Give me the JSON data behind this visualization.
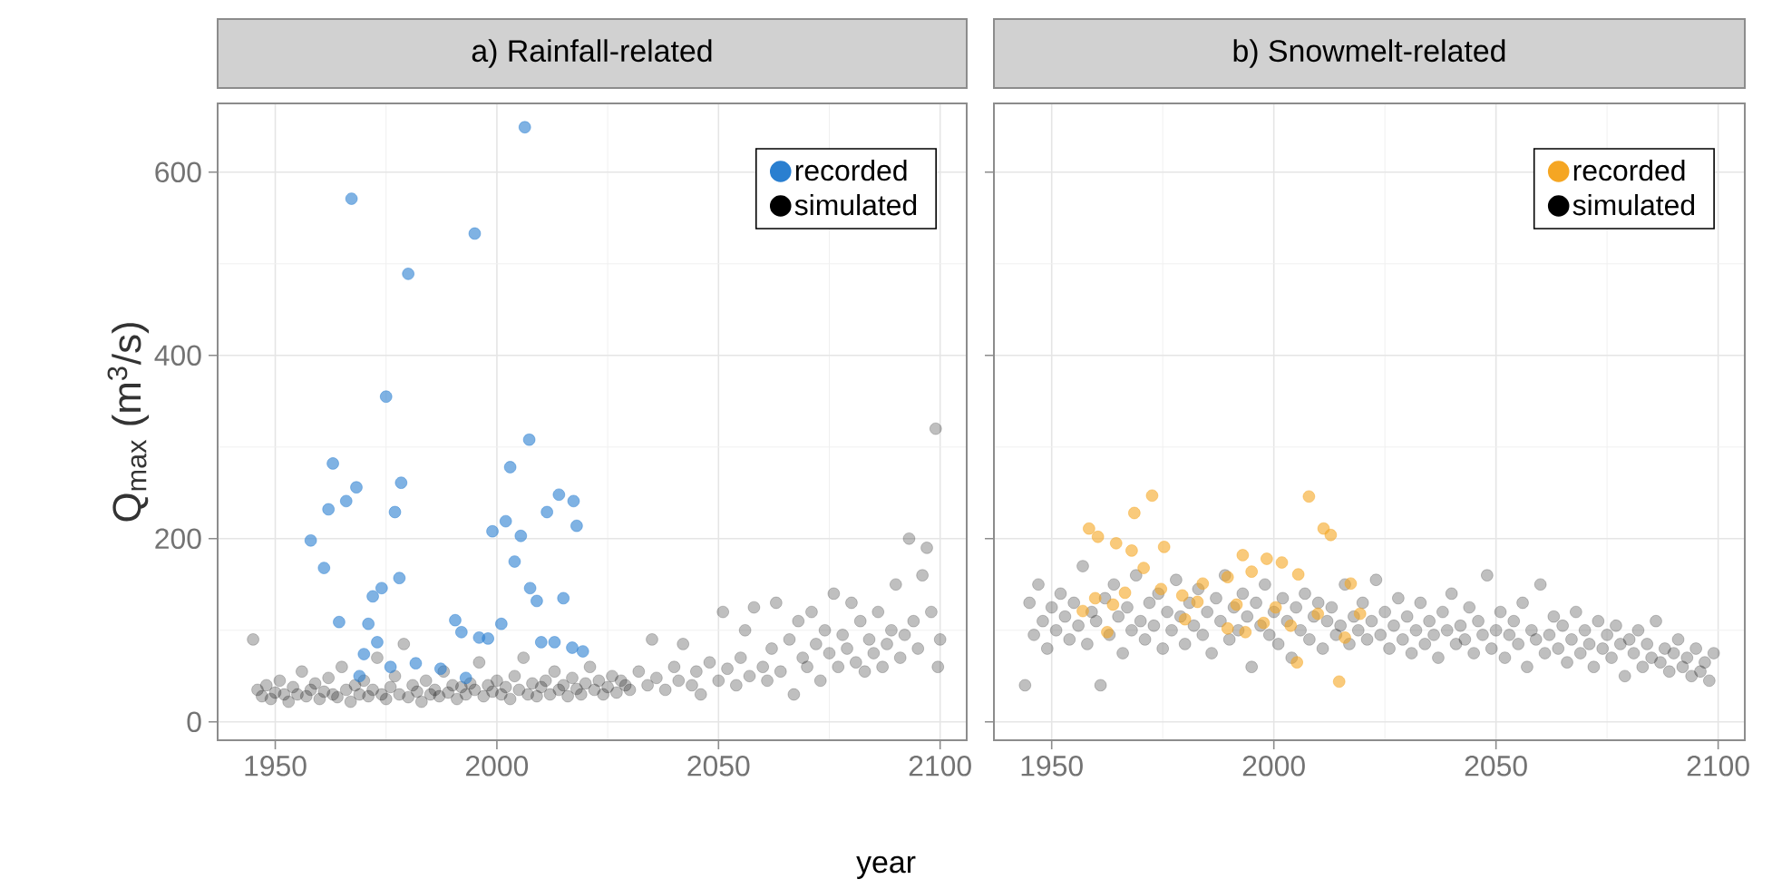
{
  "chart_data": [
    {
      "type": "scatter",
      "title": "a)  Rainfall-related",
      "xlabel": "year",
      "ylabel": "Q$_{max}$ (m$^{3}$/s)",
      "xlim": [
        1937,
        2106
      ],
      "ylim": [
        -20,
        675
      ],
      "xticks": [
        1950,
        2000,
        2050,
        2100
      ],
      "yticks": [
        0,
        200,
        400,
        600
      ],
      "grid": true,
      "legend": "top right",
      "marker": "circle",
      "series": [
        {
          "name": "recorded",
          "color": "#2a7fd0",
          "x": [
            1967.2,
            1980,
            1995,
            2006.3,
            1975,
            2007.3,
            1963,
            2003,
            1968.3,
            1966,
            1978.4,
            1962,
            1977,
            2014,
            2017.3,
            2018,
            2011.3,
            2002,
            1999,
            2005.4,
            1958,
            1961,
            2004,
            1978,
            1974,
            1972,
            2007.5,
            2009,
            2015,
            1964.4,
            1971,
            1990.6,
            1992,
            1996,
            1998,
            2001,
            1973,
            1970,
            2010,
            2013,
            2017,
            2019.4,
            1969,
            1976,
            1981.7,
            1987.3,
            1993
          ],
          "values": [
            571,
            489,
            533,
            649,
            355,
            308,
            282,
            278,
            256,
            241,
            261,
            232,
            229,
            248,
            241,
            214,
            229,
            219,
            208,
            203,
            198,
            168,
            175,
            157,
            146,
            137,
            146,
            132,
            135,
            109,
            107,
            111,
            98,
            92,
            91,
            107,
            87,
            74,
            87,
            87,
            81,
            77,
            50,
            60,
            64,
            58,
            48
          ]
        },
        {
          "name": "simulated",
          "color": "#000000",
          "x": [
            1945,
            1946,
            1947,
            1948,
            1949,
            1950,
            1951,
            1952,
            1953,
            1954,
            1955,
            1956,
            1957,
            1958,
            1959,
            1960,
            1961,
            1962,
            1963,
            1964,
            1965,
            1966,
            1967,
            1968,
            1969,
            1970,
            1971,
            1972,
            1973,
            1974,
            1975,
            1976,
            1977,
            1978,
            1979,
            1980,
            1981,
            1982,
            1983,
            1984,
            1985,
            1986,
            1987,
            1988,
            1989,
            1990,
            1991,
            1992,
            1993,
            1994,
            1995,
            1996,
            1997,
            1998,
            1999,
            2000,
            2001,
            2002,
            2003,
            2004,
            2005,
            2006,
            2007,
            2008,
            2009,
            2010,
            2011,
            2012,
            2013,
            2014,
            2015,
            2016,
            2017,
            2018,
            2019,
            2020,
            2021,
            2022,
            2023,
            2024,
            2025,
            2026,
            2027,
            2028,
            2029,
            2030,
            2032,
            2034,
            2035,
            2036,
            2038,
            2040,
            2041,
            2042,
            2044,
            2045,
            2046,
            2048,
            2050,
            2051,
            2052,
            2054,
            2055,
            2056,
            2057,
            2058,
            2060,
            2061,
            2062,
            2063,
            2064,
            2066,
            2067,
            2068,
            2069,
            2070,
            2071,
            2072,
            2073,
            2074,
            2075,
            2076,
            2077,
            2078,
            2079,
            2080,
            2081,
            2082,
            2083,
            2084,
            2085,
            2086,
            2087,
            2088,
            2089,
            2090,
            2091,
            2092,
            2093,
            2094,
            2095,
            2096,
            2097,
            2098,
            2099,
            2099.5,
            2100
          ],
          "values": [
            90,
            35,
            28,
            40,
            25,
            32,
            45,
            30,
            22,
            38,
            30,
            55,
            28,
            35,
            42,
            25,
            33,
            48,
            30,
            27,
            60,
            35,
            22,
            40,
            30,
            45,
            28,
            35,
            70,
            30,
            25,
            38,
            50,
            30,
            85,
            27,
            40,
            33,
            22,
            45,
            30,
            35,
            28,
            55,
            32,
            40,
            25,
            38,
            30,
            42,
            35,
            65,
            28,
            40,
            33,
            45,
            30,
            38,
            25,
            50,
            35,
            70,
            30,
            42,
            28,
            38,
            45,
            30,
            55,
            35,
            40,
            28,
            48,
            36,
            30,
            42,
            60,
            35,
            45,
            30,
            38,
            50,
            32,
            45,
            40,
            35,
            55,
            40,
            90,
            48,
            35,
            60,
            45,
            85,
            40,
            55,
            30,
            65,
            45,
            120,
            58,
            40,
            70,
            100,
            50,
            125,
            60,
            45,
            80,
            130,
            55,
            90,
            30,
            110,
            70,
            60,
            120,
            85,
            45,
            100,
            75,
            140,
            60,
            95,
            80,
            130,
            65,
            110,
            55,
            90,
            75,
            120,
            60,
            85,
            100,
            150,
            70,
            95,
            200,
            110,
            80,
            160,
            190,
            120,
            320,
            60,
            90
          ]
        }
      ]
    },
    {
      "type": "scatter",
      "title": "b)  Snowmelt-related",
      "xlim": [
        1937,
        2106
      ],
      "ylim": [
        -20,
        675
      ],
      "xticks": [
        1950,
        2000,
        2050,
        2100
      ],
      "yticks": [
        0,
        200,
        400,
        600
      ],
      "tick_labels": "x",
      "grid": true,
      "legend": "top right",
      "marker": "circle",
      "series": [
        {
          "name": "recorded",
          "color": "#f5a623",
          "x": [
            1972.6,
            2007.9,
            1968.6,
            1958.4,
            1960.4,
            2011.2,
            2012.8,
            1964.5,
            1975.3,
            1968,
            1970.7,
            1993,
            1998.4,
            2001.8,
            1995,
            2005.5,
            1989.6,
            1984,
            2017.3,
            1974.6,
            1966.5,
            1979.4,
            1982.8,
            1959.8,
            1957,
            1963.8,
            1991.6,
            2000.4,
            2009.9,
            2019.4,
            1980,
            1989.6,
            1997.7,
            2003.8,
            1962.5,
            1993.6,
            2016,
            2005.2,
            2014.7
          ],
          "values": [
            247,
            246,
            228,
            211,
            202,
            211,
            204,
            195,
            191,
            187,
            168,
            182,
            178,
            174,
            164,
            161,
            158,
            151,
            151,
            145,
            141,
            138,
            131,
            135,
            121,
            128,
            128,
            125,
            118,
            118,
            112,
            102,
            108,
            105,
            98,
            98,
            92,
            65,
            44
          ]
        },
        {
          "name": "simulated",
          "color": "#000000",
          "x": [
            1944,
            1945,
            1946,
            1947,
            1948,
            1949,
            1950,
            1951,
            1952,
            1953,
            1954,
            1955,
            1956,
            1957,
            1958,
            1959,
            1960,
            1961,
            1962,
            1963,
            1964,
            1965,
            1966,
            1967,
            1968,
            1969,
            1970,
            1971,
            1972,
            1973,
            1974,
            1975,
            1976,
            1977,
            1978,
            1979,
            1980,
            1981,
            1982,
            1983,
            1984,
            1985,
            1986,
            1987,
            1988,
            1989,
            1990,
            1991,
            1992,
            1993,
            1994,
            1995,
            1996,
            1997,
            1998,
            1999,
            2000,
            2001,
            2002,
            2003,
            2004,
            2005,
            2006,
            2007,
            2008,
            2009,
            2010,
            2011,
            2012,
            2013,
            2014,
            2015,
            2016,
            2017,
            2018,
            2019,
            2020,
            2021,
            2022,
            2023,
            2024,
            2025,
            2026,
            2027,
            2028,
            2029,
            2030,
            2031,
            2032,
            2033,
            2034,
            2035,
            2036,
            2037,
            2038,
            2039,
            2040,
            2041,
            2042,
            2043,
            2044,
            2045,
            2046,
            2047,
            2048,
            2049,
            2050,
            2051,
            2052,
            2053,
            2054,
            2055,
            2056,
            2057,
            2058,
            2059,
            2060,
            2061,
            2062,
            2063,
            2064,
            2065,
            2066,
            2067,
            2068,
            2069,
            2070,
            2071,
            2072,
            2073,
            2074,
            2075,
            2076,
            2077,
            2078,
            2079,
            2080,
            2081,
            2082,
            2083,
            2084,
            2085,
            2086,
            2087,
            2088,
            2089,
            2090,
            2091,
            2092,
            2093,
            2094,
            2095,
            2096,
            2097,
            2098,
            2099
          ],
          "values": [
            40,
            130,
            95,
            150,
            110,
            80,
            125,
            100,
            140,
            115,
            90,
            130,
            105,
            170,
            85,
            120,
            110,
            40,
            135,
            95,
            150,
            115,
            75,
            125,
            100,
            160,
            110,
            90,
            130,
            105,
            140,
            80,
            120,
            100,
            155,
            115,
            85,
            130,
            105,
            145,
            95,
            120,
            75,
            135,
            110,
            160,
            90,
            125,
            100,
            140,
            115,
            60,
            130,
            105,
            150,
            95,
            120,
            85,
            135,
            110,
            70,
            125,
            100,
            140,
            90,
            115,
            130,
            80,
            110,
            125,
            95,
            105,
            150,
            85,
            115,
            100,
            130,
            90,
            110,
            155,
            95,
            120,
            80,
            105,
            135,
            90,
            115,
            75,
            100,
            130,
            85,
            110,
            95,
            70,
            120,
            100,
            140,
            85,
            105,
            90,
            125,
            75,
            110,
            95,
            160,
            80,
            100,
            120,
            70,
            95,
            110,
            85,
            130,
            60,
            100,
            90,
            150,
            75,
            95,
            115,
            80,
            105,
            65,
            90,
            120,
            75,
            100,
            85,
            60,
            110,
            80,
            95,
            70,
            105,
            85,
            50,
            90,
            75,
            100,
            60,
            85,
            70,
            110,
            65,
            80,
            55,
            75,
            90,
            60,
            70,
            50,
            80,
            55,
            65,
            45,
            75
          ]
        }
      ]
    }
  ]
}
